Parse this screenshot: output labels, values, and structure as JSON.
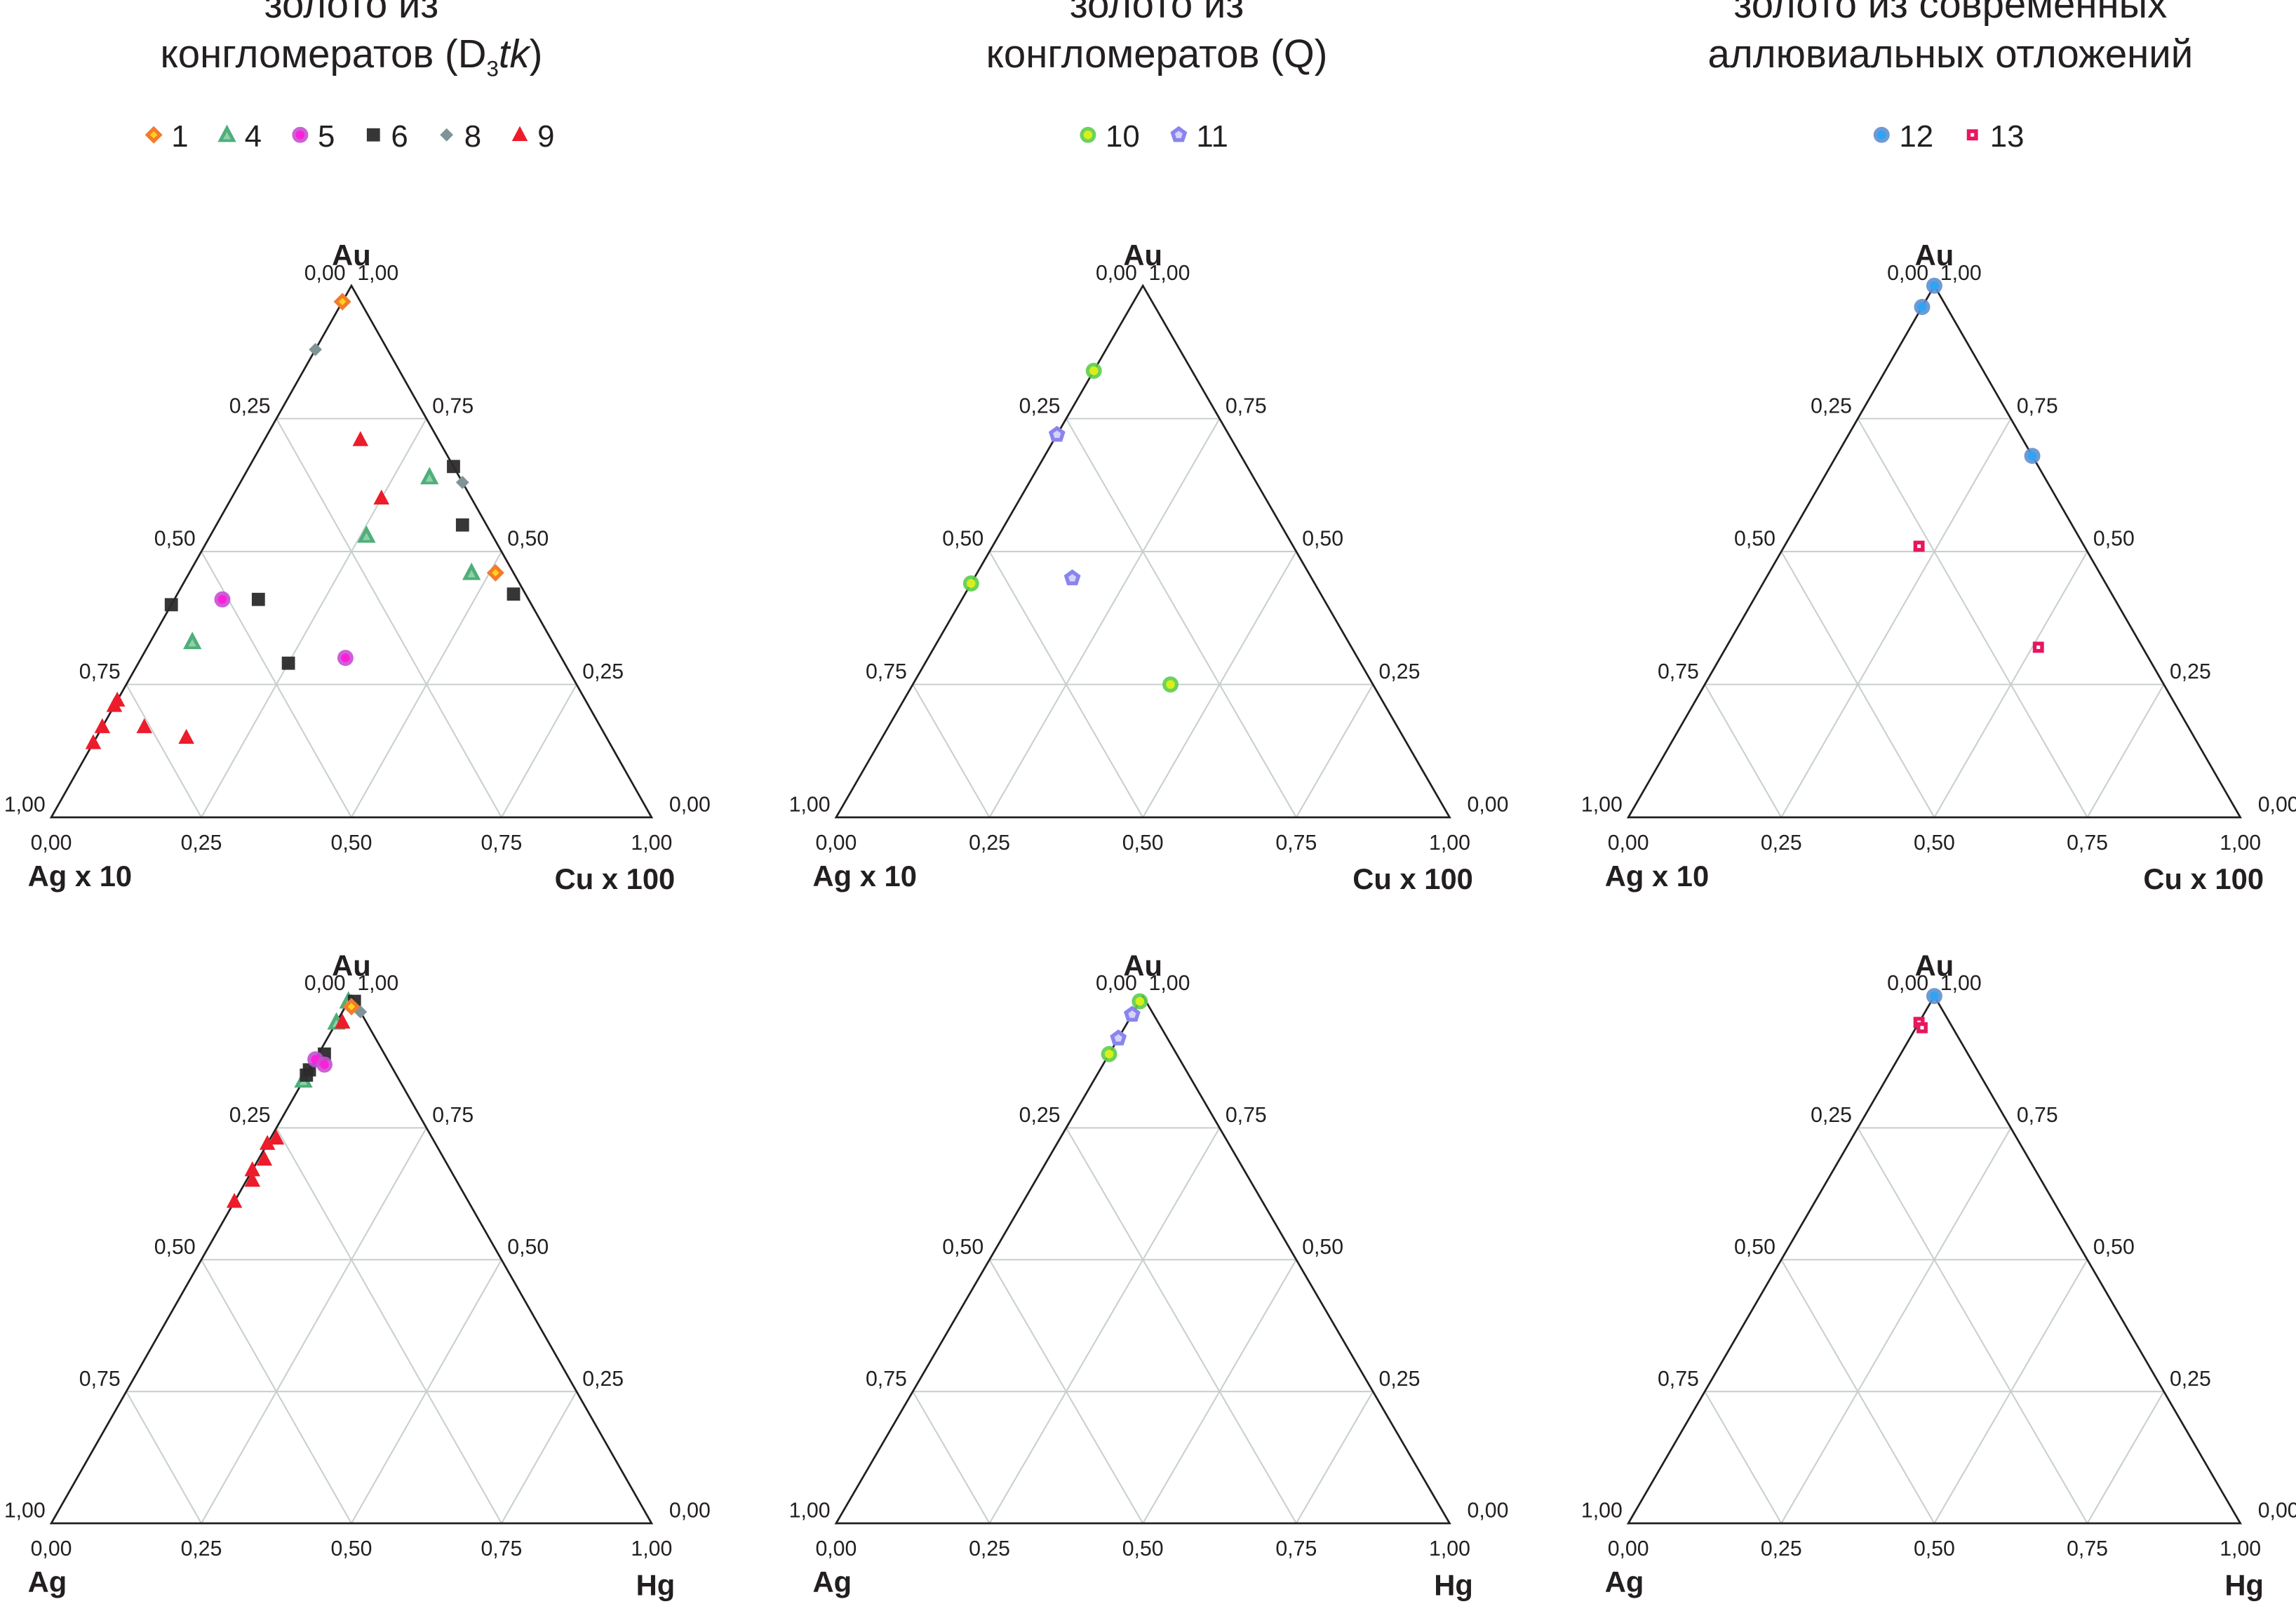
{
  "colors": {
    "s1": "#f47b2a",
    "s1_inner": "#ffd21f",
    "s4": "#4fae7a",
    "s4_inner": "#8fd0a8",
    "s5": "#c64fd4",
    "s5_inner": "#ff1fd7",
    "s6": "#2b2b2b",
    "s8": "#7f9496",
    "s9": "#ec1c2b",
    "s10": "#5ccd4a",
    "s10_inner": "#d7ef1b",
    "s11": "#8a84ee",
    "s11_inner": "#d6d3fa",
    "s12": "#5f8fd0",
    "s12_inner": "#2fa4f2",
    "s13": "#e8155f",
    "s13_inner": "#ffffff",
    "grid": "#c8d0cf",
    "frame": "#231f20"
  },
  "groups": [
    {
      "title_line1": "золото из",
      "title_line2_main": "конгломератов (D",
      "title_line2_sub": "3",
      "title_line2_italic": "tk",
      "title_line2_end": ")",
      "legend": [
        {
          "id": "s1",
          "label": "1",
          "marker": "diamond"
        },
        {
          "id": "s4",
          "label": "4",
          "marker": "triangle"
        },
        {
          "id": "s5",
          "label": "5",
          "marker": "circle"
        },
        {
          "id": "s6",
          "label": "6",
          "marker": "square"
        },
        {
          "id": "s8",
          "label": "8",
          "marker": "small-diamond"
        },
        {
          "id": "s9",
          "label": "9",
          "marker": "filled-triangle"
        }
      ]
    },
    {
      "title_line1": "золото из",
      "title_line2_main": "конгломератов (Q)",
      "legend": [
        {
          "id": "s10",
          "label": "10",
          "marker": "circle"
        },
        {
          "id": "s11",
          "label": "11",
          "marker": "pentagon"
        }
      ]
    },
    {
      "title_line1": "золото из современных",
      "title_line2_main": "аллювиальных отложений",
      "legend": [
        {
          "id": "s12",
          "label": "12",
          "marker": "circle"
        },
        {
          "id": "s13",
          "label": "13",
          "marker": "small-square"
        }
      ]
    }
  ],
  "chart_data": [
    {
      "type": "ternary",
      "top": "Au",
      "left": "Ag x 10",
      "right": "Cu x 100",
      "grid": true,
      "left_ticks": [
        "0,00",
        "0,25",
        "0,50",
        "0,75",
        "1,00"
      ],
      "right_ticks": [
        "1,00",
        "0,75",
        "0,50",
        "0,25",
        "0,00"
      ],
      "bottom_ticks": [
        "0,00",
        "0,25",
        "0,50",
        "0,75",
        "1,00"
      ],
      "series": [
        {
          "id": "s1",
          "marker": "diamond",
          "points": [
            [
              0.97,
              0.03,
              0.0
            ],
            [
              0.46,
              0.03,
              0.51
            ]
          ]
        },
        {
          "id": "s8",
          "marker": "small-diamond",
          "points": [
            [
              0.88,
              0.12,
              0.0
            ],
            [
              0.63,
              0.0,
              0.37
            ]
          ]
        },
        {
          "id": "s9",
          "marker": "filled-triangle",
          "points": [
            [
              0.71,
              0.13,
              0.16
            ],
            [
              0.6,
              0.15,
              0.25
            ],
            [
              0.22,
              0.78,
              0.0
            ],
            [
              0.21,
              0.79,
              0.0
            ],
            [
              0.17,
              0.83,
              0.0
            ],
            [
              0.14,
              0.86,
              0.0
            ],
            [
              0.17,
              0.76,
              0.07
            ],
            [
              0.15,
              0.7,
              0.15
            ]
          ]
        },
        {
          "id": "s6",
          "marker": "square",
          "points": [
            [
              0.66,
              0.0,
              0.34
            ],
            [
              0.55,
              0.04,
              0.41
            ],
            [
              0.42,
              0.02,
              0.56
            ],
            [
              0.4,
              0.6,
              0.0
            ],
            [
              0.41,
              0.45,
              0.14
            ],
            [
              0.29,
              0.46,
              0.25
            ]
          ]
        },
        {
          "id": "s5",
          "marker": "circle",
          "points": [
            [
              0.41,
              0.51,
              0.08
            ],
            [
              0.3,
              0.36,
              0.34
            ]
          ]
        },
        {
          "id": "s4",
          "marker": "triangle",
          "points": [
            [
              0.64,
              0.05,
              0.31
            ],
            [
              0.53,
              0.21,
              0.26
            ],
            [
              0.46,
              0.07,
              0.47
            ],
            [
              0.33,
              0.6,
              0.07
            ]
          ]
        }
      ]
    },
    {
      "type": "ternary",
      "top": "Au",
      "left": "Ag x 10",
      "right": "Cu x 100",
      "grid": true,
      "left_ticks": [
        "0,00",
        "0,25",
        "0,50",
        "0,75",
        "1,00"
      ],
      "right_ticks": [
        "1,00",
        "0,75",
        "0,50",
        "0,25",
        "0,00"
      ],
      "bottom_ticks": [
        "0,00",
        "0,25",
        "0,50",
        "0,75",
        "1,00"
      ],
      "series": [
        {
          "id": "s10",
          "marker": "circle",
          "points": [
            [
              0.84,
              0.16,
              0.0
            ],
            [
              0.44,
              0.56,
              0.0
            ],
            [
              0.25,
              0.33,
              0.42
            ]
          ]
        },
        {
          "id": "s11",
          "marker": "pentagon",
          "points": [
            [
              0.72,
              0.28,
              0.0
            ],
            [
              0.45,
              0.39,
              0.16
            ]
          ]
        }
      ]
    },
    {
      "type": "ternary",
      "top": "Au",
      "left": "Ag x 10",
      "right": "Cu x 100",
      "grid": true,
      "left_ticks": [
        "0,00",
        "0,25",
        "0,50",
        "0,75",
        "1,00"
      ],
      "right_ticks": [
        "1,00",
        "0,75",
        "0,50",
        "0,25",
        "0,00"
      ],
      "bottom_ticks": [
        "0,00",
        "0,25",
        "0,50",
        "0,75",
        "1,00"
      ],
      "series": [
        {
          "id": "s12",
          "marker": "circle",
          "points": [
            [
              1.0,
              0.0,
              0.0
            ],
            [
              0.96,
              0.04,
              0.0
            ],
            [
              0.68,
              0.0,
              0.32
            ]
          ]
        },
        {
          "id": "s13",
          "marker": "small-square",
          "points": [
            [
              0.51,
              0.27,
              0.22
            ],
            [
              0.32,
              0.17,
              0.51
            ]
          ]
        }
      ]
    },
    {
      "type": "ternary",
      "top": "Au",
      "left": "Ag",
      "right": "Hg",
      "grid": true,
      "left_ticks": [
        "0,00",
        "0,25",
        "0,50",
        "0,75",
        "1,00"
      ],
      "right_ticks": [
        "1,00",
        "0,75",
        "0,50",
        "0,25",
        "0,00"
      ],
      "bottom_ticks": [
        "0,00",
        "0,25",
        "0,50",
        "0,75",
        "1,00"
      ],
      "series": [
        {
          "id": "s4",
          "marker": "triangle",
          "points": [
            [
              0.99,
              0.01,
              0.0
            ],
            [
              0.95,
              0.05,
              0.0
            ],
            [
              0.84,
              0.16,
              0.0
            ]
          ]
        },
        {
          "id": "s6",
          "marker": "square",
          "points": [
            [
              0.99,
              0.0,
              0.01
            ],
            [
              0.89,
              0.1,
              0.01
            ],
            [
              0.86,
              0.14,
              0.0
            ],
            [
              0.85,
              0.15,
              0.0
            ]
          ]
        },
        {
          "id": "s5",
          "marker": "circle",
          "points": [
            [
              0.88,
              0.12,
              0.0
            ],
            [
              0.87,
              0.11,
              0.02
            ]
          ]
        },
        {
          "id": "s9",
          "marker": "filled-triangle",
          "points": [
            [
              0.95,
              0.04,
              0.01
            ],
            [
              0.73,
              0.26,
              0.01
            ],
            [
              0.72,
              0.28,
              0.0
            ],
            [
              0.69,
              0.3,
              0.01
            ],
            [
              0.67,
              0.33,
              0.0
            ],
            [
              0.65,
              0.34,
              0.01
            ],
            [
              0.61,
              0.39,
              0.0
            ]
          ]
        },
        {
          "id": "s8",
          "marker": "small-diamond",
          "points": [
            [
              0.97,
              0.0,
              0.03
            ]
          ]
        },
        {
          "id": "s1",
          "marker": "diamond",
          "points": [
            [
              0.98,
              0.01,
              0.01
            ]
          ]
        }
      ]
    },
    {
      "type": "ternary",
      "top": "Au",
      "left": "Ag",
      "right": "Hg",
      "grid": true,
      "left_ticks": [
        "0,00",
        "0,25",
        "0,50",
        "0,75",
        "1,00"
      ],
      "right_ticks": [
        "1,00",
        "0,75",
        "0,50",
        "0,25",
        "0,00"
      ],
      "bottom_ticks": [
        "0,00",
        "0,25",
        "0,50",
        "0,75",
        "1,00"
      ],
      "series": [
        {
          "id": "s10",
          "marker": "circle",
          "points": [
            [
              0.99,
              0.01,
              0.0
            ],
            [
              0.89,
              0.11,
              0.0
            ]
          ]
        },
        {
          "id": "s11",
          "marker": "pentagon",
          "points": [
            [
              0.965,
              0.035,
              0.0
            ],
            [
              0.92,
              0.08,
              0.0
            ]
          ]
        }
      ]
    },
    {
      "type": "ternary",
      "top": "Au",
      "left": "Ag",
      "right": "Hg",
      "grid": true,
      "left_ticks": [
        "0,00",
        "0,25",
        "0,50",
        "0,75",
        "1,00"
      ],
      "right_ticks": [
        "1,00",
        "0,75",
        "0,50",
        "0,25",
        "0,00"
      ],
      "bottom_ticks": [
        "0,00",
        "0,25",
        "0,50",
        "0,75",
        "1,00"
      ],
      "series": [
        {
          "id": "s12",
          "marker": "circle",
          "points": [
            [
              1.0,
              0.0,
              0.0
            ]
          ]
        },
        {
          "id": "s13",
          "marker": "small-square",
          "points": [
            [
              0.95,
              0.05,
              0.0
            ],
            [
              0.94,
              0.05,
              0.01
            ]
          ]
        }
      ]
    }
  ]
}
